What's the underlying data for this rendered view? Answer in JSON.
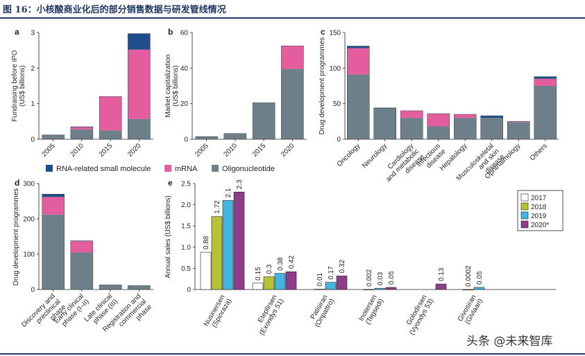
{
  "figure_title": "图 16：小核酸商业化后的部分销售数据与研发管线情况",
  "watermark": "头条 @未来智库",
  "colors": {
    "small_molecule": "#1f4e8c",
    "mrna": "#e45d9e",
    "oligo": "#6d7f88",
    "y2017": "#ffffff",
    "y2018": "#b5c334",
    "y2019": "#44b6dd",
    "y2020": "#8e3d8a",
    "axis": "#231f20",
    "title": "#1f3864"
  },
  "legend_main": [
    "RNA-related small molecule",
    "mRNA",
    "Oligonucleotide"
  ],
  "chart_data": [
    {
      "panel": "a",
      "type": "bar",
      "stacked": true,
      "ylabel": "Fundraising before IPO (US$ billions)",
      "ylabel_lines": [
        "Fundraising before IPO",
        "(US$ billions)"
      ],
      "ylim": [
        0,
        3
      ],
      "yticks": [
        0,
        1,
        2,
        3
      ],
      "categories": [
        "2005",
        "2010",
        "2015",
        "2020"
      ],
      "series": [
        {
          "name": "Oligonucleotide",
          "values": [
            0.12,
            0.28,
            0.25,
            0.57
          ]
        },
        {
          "name": "mRNA",
          "values": [
            0,
            0.06,
            0.95,
            1.95
          ]
        },
        {
          "name": "RNA-related small molecule",
          "values": [
            0,
            0.01,
            0,
            0.45
          ]
        }
      ]
    },
    {
      "panel": "b",
      "type": "bar",
      "stacked": true,
      "ylabel": "Market capitalization (US$ billions)",
      "ylabel_lines": [
        "Market capitalization",
        "(US$ billions)"
      ],
      "ylim": [
        0,
        60
      ],
      "yticks": [
        0,
        20,
        40,
        60
      ],
      "categories": [
        "2005",
        "2010",
        "2015",
        "2020"
      ],
      "series": [
        {
          "name": "Oligonucleotide",
          "values": [
            1.5,
            3.2,
            20.5,
            39.5
          ]
        },
        {
          "name": "mRNA",
          "values": [
            0,
            0,
            0,
            13
          ]
        },
        {
          "name": "RNA-related small molecule",
          "values": [
            0,
            0,
            0,
            0
          ]
        }
      ]
    },
    {
      "panel": "c",
      "type": "bar",
      "stacked": true,
      "ylabel": "Drug development programmes",
      "ylabel_lines": [
        "Drug development programmes"
      ],
      "ylim": [
        0,
        150
      ],
      "yticks": [
        0,
        50,
        100,
        150
      ],
      "categories": [
        "Oncology",
        "Neurology",
        "Cardiology and metabolic disease",
        "Infectious disease",
        "Hepatology",
        "Musculoskeletal and skin disease",
        "Ophthalmology",
        "Others"
      ],
      "category_lines": [
        [
          "Oncology"
        ],
        [
          "Neurology"
        ],
        [
          "Cardiology",
          "and metabolic",
          "disease"
        ],
        [
          "Infectious",
          "disease"
        ],
        [
          "Hepatology"
        ],
        [
          "Musculoskeletal",
          "and skin",
          "disease"
        ],
        [
          "Ophthalmology"
        ],
        [
          "Others"
        ]
      ],
      "series": [
        {
          "name": "Oligonucleotide",
          "values": [
            91,
            43,
            30,
            18,
            30,
            30,
            24,
            75
          ]
        },
        {
          "name": "mRNA",
          "values": [
            37,
            0,
            10,
            18,
            5,
            0,
            1,
            10
          ]
        },
        {
          "name": "RNA-related small molecule",
          "values": [
            3,
            1,
            0,
            0,
            0,
            3,
            0,
            3
          ]
        }
      ]
    },
    {
      "panel": "d",
      "type": "bar",
      "stacked": true,
      "ylabel": "Drug development programmes",
      "ylabel_lines": [
        "Drug development programmes"
      ],
      "ylim": [
        0,
        300
      ],
      "yticks": [
        0,
        100,
        200,
        300
      ],
      "categories": [
        "Discovery and preclinical phase",
        "Early clinical phase (I–II)",
        "Late clinical phase (III)",
        "Registration and commercial phase"
      ],
      "category_lines": [
        [
          "Discovery and",
          "preclinical",
          "phase"
        ],
        [
          "Early clinical",
          "phase (I–II)"
        ],
        [
          "Late clinical",
          "phase (III)"
        ],
        [
          "Registration and",
          "commercial",
          "phase"
        ]
      ],
      "series": [
        {
          "name": "Oligonucleotide",
          "values": [
            212,
            105,
            13,
            11
          ]
        },
        {
          "name": "mRNA",
          "values": [
            50,
            32,
            0,
            0
          ]
        },
        {
          "name": "RNA-related small molecule",
          "values": [
            8,
            1,
            0,
            0
          ]
        }
      ]
    },
    {
      "panel": "e",
      "type": "bar",
      "stacked": false,
      "ylabel": "Annual sales (US$ billions)",
      "ylabel_lines": [
        "Annual sales (US$ billions)"
      ],
      "ylim": [
        0,
        2.5
      ],
      "yticks": [
        0,
        0.5,
        1.0,
        1.5,
        2.0,
        2.5
      ],
      "ytick_labels": [
        "0",
        "0.5",
        "1.0",
        "1.5",
        "2.0",
        "2.5"
      ],
      "categories": [
        "Nusinersen (Spinraza)",
        "Eteplirsen (Exondys 51)",
        "Patisiran (Onpattro)",
        "Inotersen (Tegsedi)",
        "Golodirsen (Vyondys 53)",
        "Givosiran (Givlaari)"
      ],
      "category_lines": [
        [
          "Nusinersen",
          "(Spinraza)"
        ],
        [
          "Eteplirsen",
          "(Exondys 51)"
        ],
        [
          "Patisiran",
          "(Onpattro)"
        ],
        [
          "Inotersen",
          "(Tegsedi)"
        ],
        [
          "Golodirsen",
          "(Vyondys 53)"
        ],
        [
          "Givosiran",
          "(Givlaari)"
        ]
      ],
      "legend": [
        "2017",
        "2018",
        "2019",
        "2020*"
      ],
      "series": [
        {
          "name": "2017",
          "values": [
            0.88,
            0.15,
            null,
            null,
            null,
            null
          ],
          "labels": [
            "0.88",
            "0.15",
            "",
            "",
            "",
            ""
          ]
        },
        {
          "name": "2018",
          "values": [
            1.72,
            0.3,
            0.01,
            0.002,
            null,
            0.0002
          ],
          "labels": [
            "1.72",
            "0.3",
            "0.01",
            "0.002",
            "",
            "0.0002"
          ]
        },
        {
          "name": "2019",
          "values": [
            2.1,
            0.38,
            0.17,
            0.03,
            null,
            0.05
          ],
          "labels": [
            "2.1",
            "0.38",
            "0.17",
            "0.03",
            "",
            "0.05"
          ]
        },
        {
          "name": "2020*",
          "values": [
            2.3,
            0.42,
            0.32,
            0.05,
            0.13,
            null
          ],
          "labels": [
            "2.3",
            "0.42",
            "0.32",
            "0.05",
            "0.13",
            ""
          ]
        }
      ]
    }
  ]
}
